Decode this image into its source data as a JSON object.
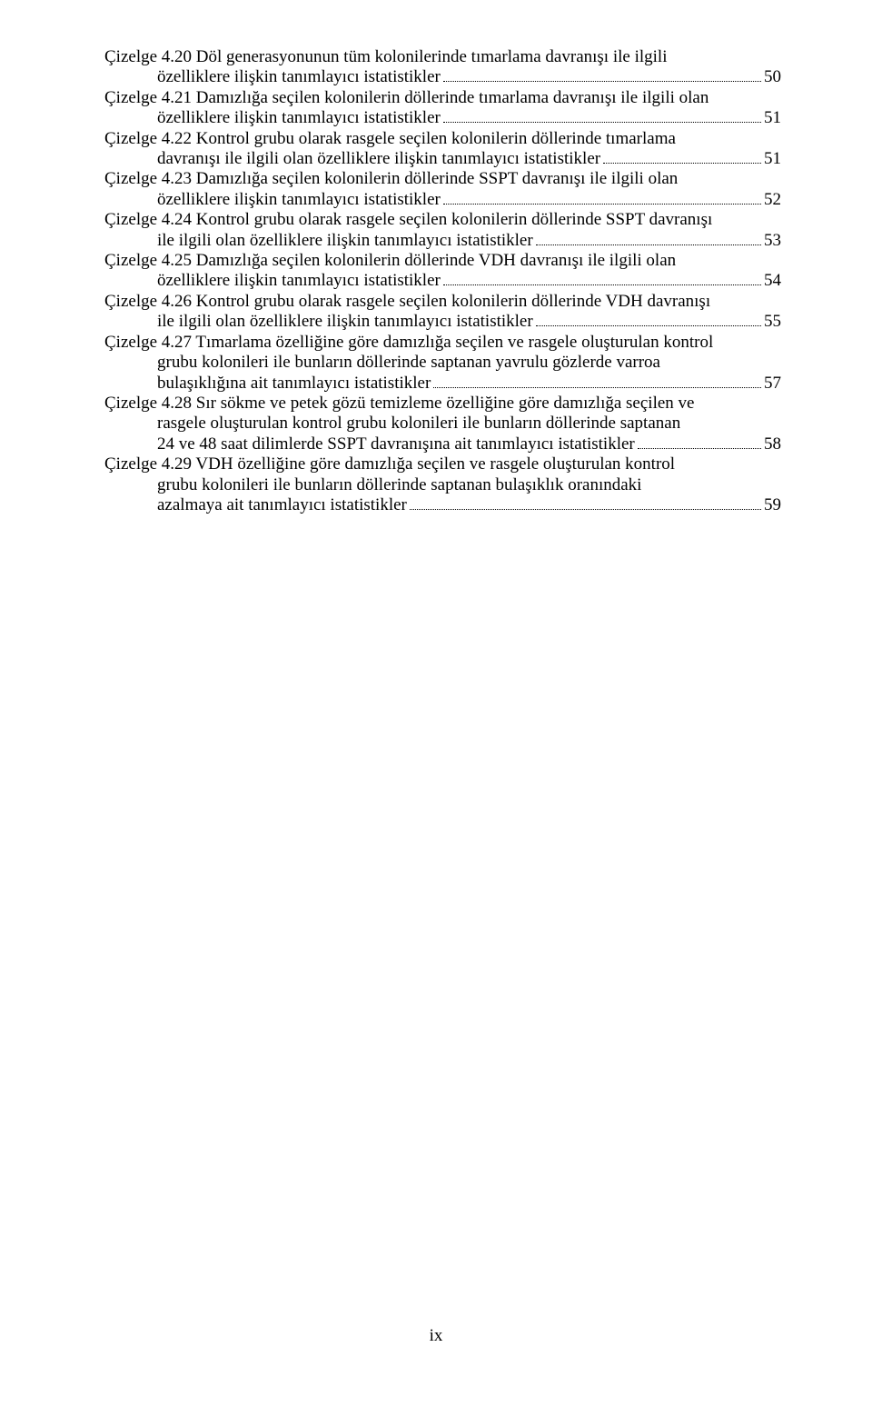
{
  "entries": [
    {
      "line1": "Çizelge 4.20 Döl generasyonunun tüm kolonilerinde tımarlama davranışı ile ilgili",
      "rest_before": "özelliklere ilişkin tanımlayıcı istatistikler",
      "page": "50"
    },
    {
      "line1": "Çizelge 4.21 Damızlığa seçilen kolonilerin döllerinde tımarlama davranışı ile ilgili olan",
      "rest_before": "özelliklere ilişkin tanımlayıcı istatistikler",
      "page": "51"
    },
    {
      "line1": "Çizelge 4.22 Kontrol grubu olarak rasgele seçilen kolonilerin döllerinde tımarlama",
      "rest_before": "davranışı ile ilgili olan özelliklere ilişkin tanımlayıcı istatistikler",
      "page": "51"
    },
    {
      "line1": "Çizelge 4.23 Damızlığa seçilen kolonilerin döllerinde SSPT davranışı ile ilgili olan",
      "rest_before": "özelliklere ilişkin tanımlayıcı istatistikler",
      "page": "52"
    },
    {
      "line1": "Çizelge 4.24 Kontrol grubu olarak rasgele seçilen kolonilerin döllerinde SSPT davranışı",
      "rest_before": "ile ilgili olan özelliklere ilişkin tanımlayıcı istatistikler",
      "page": "53"
    },
    {
      "line1": "Çizelge 4.25 Damızlığa seçilen kolonilerin döllerinde VDH davranışı ile ilgili olan",
      "rest_before": "özelliklere ilişkin tanımlayıcı istatistikler",
      "page": "54"
    },
    {
      "line1": "Çizelge 4.26 Kontrol grubu olarak rasgele seçilen kolonilerin döllerinde VDH davranışı",
      "rest_before": "ile ilgili olan özelliklere ilişkin tanımlayıcı istatistikler",
      "page": "55"
    },
    {
      "line1": "Çizelge 4.27 Tımarlama özelliğine göre damızlığa seçilen ve rasgele oluşturulan kontrol",
      "mid_lines": [
        "grubu kolonileri ile bunların döllerinde saptanan yavrulu gözlerde varroa"
      ],
      "rest_before": "bulaşıklığına ait tanımlayıcı istatistikler",
      "page": "57"
    },
    {
      "line1": "Çizelge 4.28 Sır sökme ve petek gözü temizleme özelliğine göre damızlığa seçilen ve",
      "mid_lines": [
        "rasgele oluşturulan kontrol grubu kolonileri ile bunların döllerinde saptanan"
      ],
      "rest_before": "24 ve 48 saat dilimlerde SSPT davranışına ait tanımlayıcı istatistikler",
      "page": "58"
    },
    {
      "line1": "Çizelge 4.29 VDH özelliğine göre damızlığa seçilen ve rasgele oluşturulan kontrol",
      "mid_lines": [
        "grubu kolonileri ile bunların döllerinde saptanan bulaşıklık oranındaki"
      ],
      "rest_before": "azalmaya ait tanımlayıcı istatistikler",
      "page": "59"
    }
  ],
  "footer": "ix"
}
